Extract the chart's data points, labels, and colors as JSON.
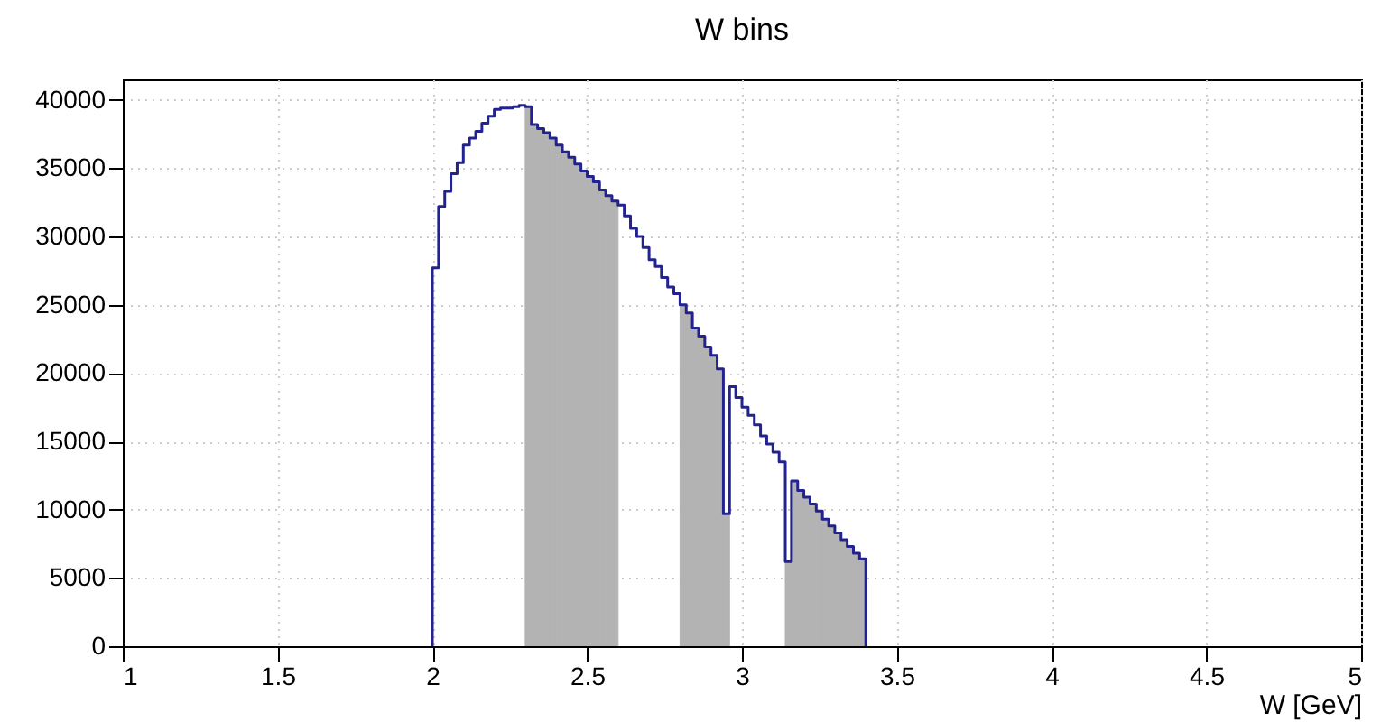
{
  "chart_data": {
    "type": "histogram",
    "title": "W bins",
    "xlabel": "W [GeV]",
    "bins": [
      2.0,
      2.02,
      2.04,
      2.06,
      2.08,
      2.1,
      2.12,
      2.14,
      2.16,
      2.18,
      2.2,
      2.22,
      2.24,
      2.26,
      2.28,
      2.3,
      2.32,
      2.34,
      2.36,
      2.38,
      2.4,
      2.42,
      2.44,
      2.46,
      2.48,
      2.5,
      2.52,
      2.54,
      2.56,
      2.58,
      2.6,
      2.62,
      2.64,
      2.66,
      2.68,
      2.7,
      2.72,
      2.74,
      2.76,
      2.78,
      2.8,
      2.82,
      2.84,
      2.86,
      2.88,
      2.9,
      2.92,
      2.94,
      2.96,
      2.98,
      3.0,
      3.02,
      3.04,
      3.06,
      3.08,
      3.1,
      3.12,
      3.14,
      3.16,
      3.18,
      3.2,
      3.22,
      3.24,
      3.26,
      3.28,
      3.3,
      3.32,
      3.34,
      3.36,
      3.38,
      3.4
    ],
    "series": [
      {
        "color": "#23238f",
        "values": [
          27700,
          32200,
          33300,
          34600,
          35400,
          36700,
          37200,
          37700,
          38300,
          38800,
          39300,
          39400,
          39400,
          39500,
          39600,
          39500,
          38200,
          37900,
          37600,
          37200,
          36700,
          36200,
          35800,
          35300,
          34800,
          34400,
          34000,
          33400,
          33000,
          32600,
          32300,
          31500,
          30600,
          30000,
          29200,
          28300,
          27800,
          27000,
          26300,
          25800,
          25000,
          24400,
          23300,
          22700,
          21900,
          21300,
          20300,
          9700,
          19000,
          18200,
          17500,
          16900,
          16200,
          15400,
          14800,
          14200,
          13500,
          6200,
          12100,
          11400,
          10900,
          10400,
          9900,
          9300,
          8800,
          8300,
          7800,
          7300,
          6800,
          6400
        ]
      },
      {
        "color": "#b3b3b3",
        "values": [
          null,
          null,
          null,
          null,
          null,
          null,
          null,
          null,
          null,
          null,
          null,
          null,
          null,
          null,
          null,
          39500,
          38200,
          37900,
          37600,
          37200,
          36700,
          36200,
          35800,
          35300,
          34800,
          34400,
          34000,
          33400,
          33000,
          32600,
          null,
          null,
          null,
          null,
          null,
          null,
          null,
          null,
          null,
          null,
          25000,
          24400,
          23300,
          22700,
          21900,
          21300,
          20300,
          9700,
          null,
          null,
          null,
          null,
          null,
          null,
          null,
          null,
          null,
          6200,
          12100,
          11400,
          10900,
          10400,
          9900,
          9300,
          8800,
          8300,
          7800,
          7300,
          6800,
          6400
        ]
      }
    ],
    "xlim": [
      1,
      5
    ],
    "xticks": [
      1,
      1.5,
      2,
      2.5,
      3,
      3.5,
      4,
      4.5,
      5
    ],
    "ylim": [
      0,
      41500
    ],
    "yticks": [
      0,
      5000,
      10000,
      15000,
      20000,
      25000,
      30000,
      35000,
      40000
    ],
    "grid": true
  }
}
